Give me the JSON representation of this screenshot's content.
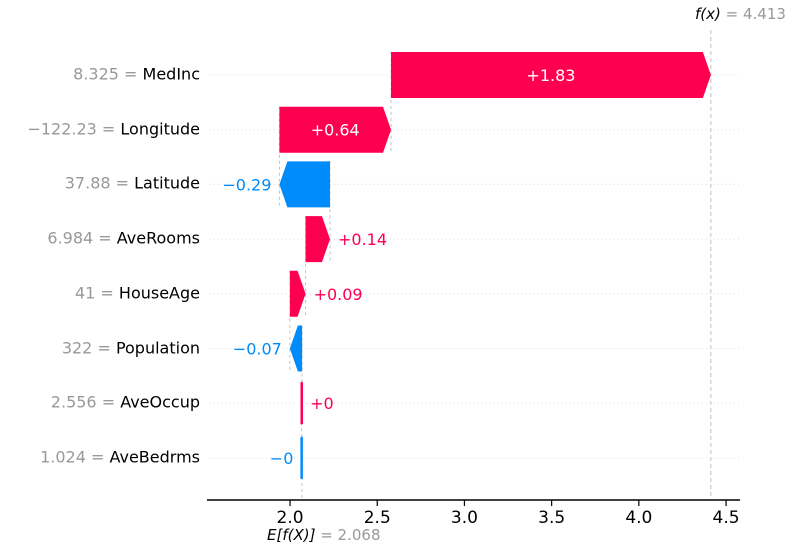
{
  "figure": {
    "background": "#ffffff",
    "kind": "shap-waterfall-plot"
  },
  "chart_data": {
    "type": "bar",
    "variant": "shap-waterfall",
    "title": "",
    "xlabel": "",
    "ylabel": "",
    "legend": "none",
    "grid": "horizontal-dotted",
    "fx_value": 4.413,
    "base_value": 2.068,
    "fx_label": {
      "func": "f(x)",
      "eq": " = 4.413"
    },
    "ef_label": {
      "func": "E[f(X)]",
      "eq": " = 2.068"
    },
    "xlim": [
      1.541,
      4.58
    ],
    "xticks": [
      2.0,
      2.5,
      3.0,
      3.5,
      4.0,
      4.5
    ],
    "colors": {
      "positive": "#ff0051",
      "negative": "#008bfb",
      "inside_label": "#ffffff",
      "gray_text": "#999999",
      "dashed": "#c2c2c2",
      "grid": "#dcdcdc",
      "axis": "#000000"
    },
    "features": [
      {
        "name": "MedInc",
        "value": "8.325",
        "shap": 1.834,
        "label": "+1.83",
        "start": 2.579,
        "end": 4.413
      },
      {
        "name": "Longitude",
        "value": "−122.23",
        "shap": 0.64,
        "label": "+0.64",
        "start": 1.939,
        "end": 2.579
      },
      {
        "name": "Latitude",
        "value": "37.88",
        "shap": -0.29,
        "label": "−0.29",
        "start": 2.229,
        "end": 1.939
      },
      {
        "name": "AveRooms",
        "value": "6.984",
        "shap": 0.14,
        "label": "+0.14",
        "start": 2.089,
        "end": 2.229
      },
      {
        "name": "HouseAge",
        "value": "41",
        "shap": 0.09,
        "label": "+0.09",
        "start": 1.999,
        "end": 2.089
      },
      {
        "name": "Population",
        "value": "322",
        "shap": -0.07,
        "label": "−0.07",
        "start": 2.069,
        "end": 1.999
      },
      {
        "name": "AveOccup",
        "value": "2.556",
        "shap": 0.004,
        "label": "+0",
        "start": 2.065,
        "end": 2.069
      },
      {
        "name": "AveBedrms",
        "value": "1.024",
        "shap": -0.003,
        "label": "−0",
        "start": 2.068,
        "end": 2.065
      }
    ]
  }
}
